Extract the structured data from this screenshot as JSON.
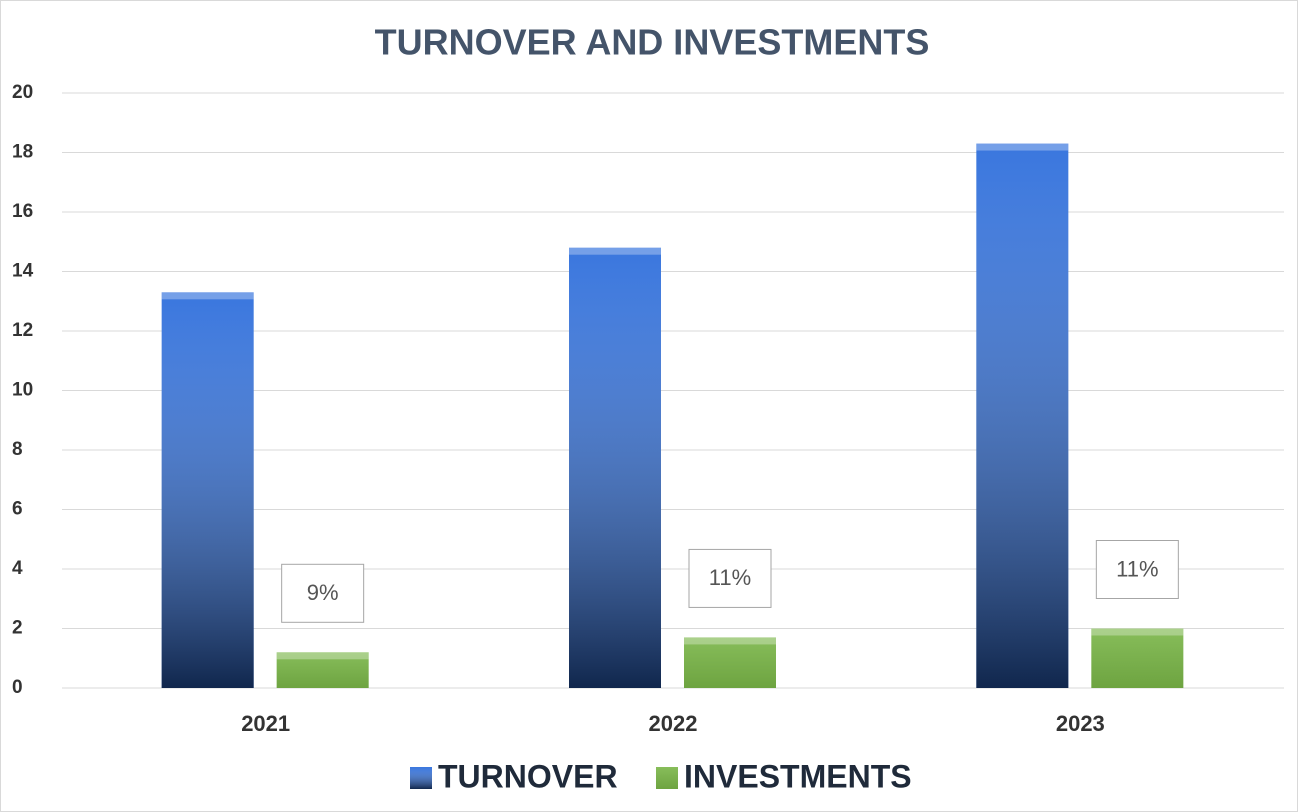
{
  "chart_data": {
    "type": "bar",
    "title": "TURNOVER AND INVESTMENTS",
    "categories": [
      "2021",
      "2022",
      "2023"
    ],
    "series": [
      {
        "name": "TURNOVER",
        "color": "#2f6fdc",
        "values": [
          13.3,
          14.8,
          18.3
        ]
      },
      {
        "name": "INVESTMENTS",
        "color": "#7ab648",
        "values": [
          1.2,
          1.7,
          2.0
        ]
      }
    ],
    "annotations": [
      "9%",
      "11%",
      "11%"
    ],
    "ylim": [
      0,
      20
    ],
    "yticks": [
      0,
      2,
      4,
      6,
      8,
      10,
      12,
      14,
      16,
      18,
      20
    ],
    "grid": true,
    "legend": "bottom"
  }
}
